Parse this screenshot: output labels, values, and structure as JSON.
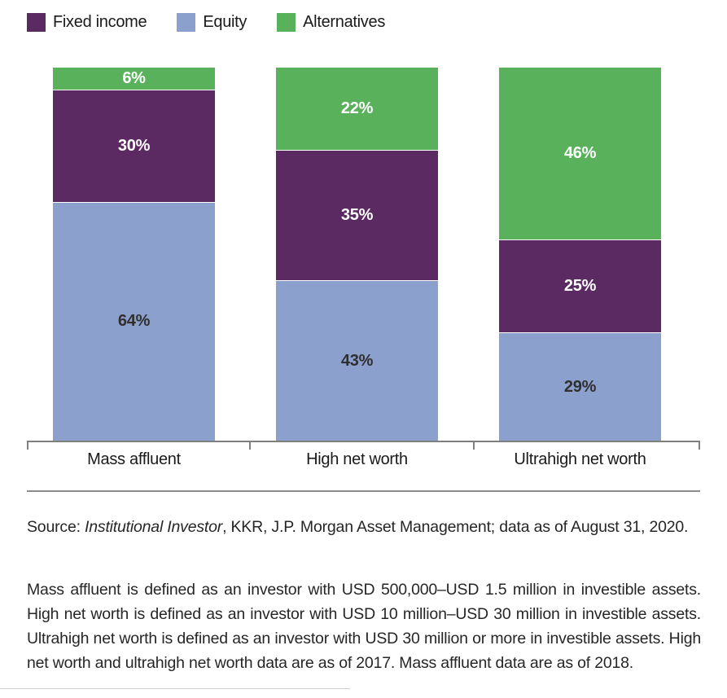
{
  "legend": {
    "items": [
      {
        "label": "Fixed income",
        "color": "#5C2A62"
      },
      {
        "label": "Equity",
        "color": "#8CA0CD"
      },
      {
        "label": "Alternatives",
        "color": "#5AB15C"
      }
    ]
  },
  "chart_data": {
    "type": "bar",
    "stacked": true,
    "unit": "%",
    "categories": [
      "Mass affluent",
      "High net worth",
      "Ultrahigh net worth"
    ],
    "series": [
      {
        "name": "Fixed income",
        "color": "#5C2A62",
        "label_color": "#ffffff",
        "values": [
          30,
          35,
          25
        ]
      },
      {
        "name": "Equity",
        "color": "#8CA0CD",
        "label_color": "#2f2f2f",
        "values": [
          64,
          43,
          29
        ]
      },
      {
        "name": "Alternatives",
        "color": "#5AB15C",
        "label_color": "#ffffff",
        "values": [
          6,
          22,
          46
        ]
      }
    ],
    "stack_order_top_to_bottom": [
      "Alternatives",
      "Fixed income",
      "Equity"
    ],
    "ylim": [
      0,
      100
    ],
    "grid": false,
    "legend_position": "top-left",
    "axis_color": "#7f7f7f",
    "value_label_format": "n%"
  },
  "source": {
    "prefix": "Source: ",
    "italic": "Institutional Investor",
    "rest": ", KKR, J.P. Morgan Asset Management; data as of August 31, 2020."
  },
  "footnote": "Mass affluent is defined as an investor with USD 500,000–USD 1.5 million in investible assets. High net worth is defined as an investor with USD 10 million–USD 30 million in investible assets. Ultrahigh net worth is defined as an investor with USD 30 million or more in investible assets. High net worth and ultrahigh net worth data are as of 2017. Mass affluent data are as of 2018."
}
